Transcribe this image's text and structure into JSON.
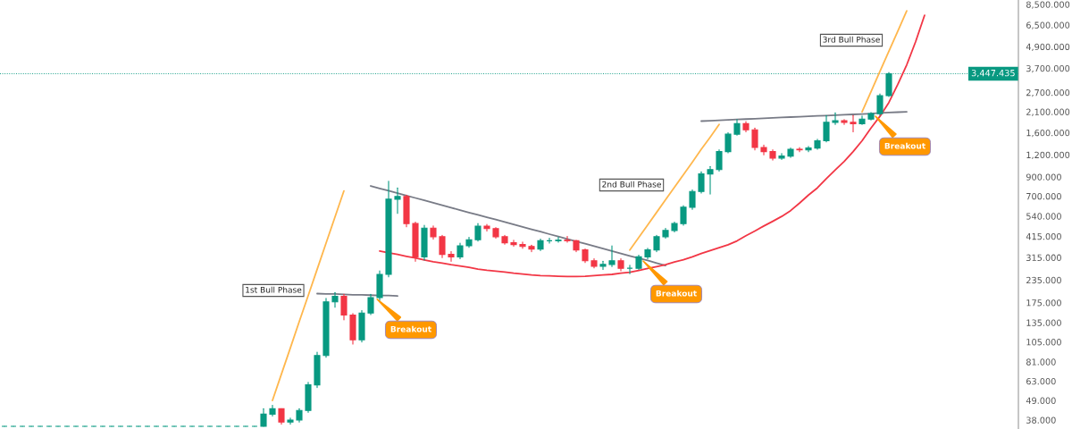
{
  "chart_data": {
    "type": "candlestick",
    "categories": [
      null,
      null,
      null,
      null,
      null,
      null,
      null,
      null,
      null,
      null,
      null,
      null,
      null,
      null,
      null,
      null,
      null,
      null,
      null,
      null,
      null,
      null,
      null,
      null,
      null,
      null,
      null,
      null,
      null,
      null,
      null,
      null,
      null,
      null,
      null,
      null,
      null,
      null,
      null,
      null,
      null,
      null,
      null,
      null,
      null,
      null,
      null,
      null,
      null,
      null,
      null,
      null,
      null,
      null,
      null,
      null,
      null,
      null,
      null,
      null,
      null,
      null,
      null,
      null,
      null,
      null,
      null,
      null,
      null,
      null,
      null,
      null,
      null,
      null,
      null,
      null,
      null,
      null,
      null,
      null,
      null,
      null,
      null,
      null,
      null,
      null,
      null,
      null,
      null,
      null,
      null,
      null,
      null,
      null,
      null,
      null,
      null,
      null,
      null,
      null,
      null,
      null,
      null,
      null
    ],
    "ohlc": [
      [
        35,
        35,
        35,
        35
      ],
      [
        35,
        35,
        35,
        35
      ],
      [
        35,
        35,
        35,
        35
      ],
      [
        35,
        35,
        35,
        35
      ],
      [
        35,
        35,
        35,
        35
      ],
      [
        35,
        35,
        35,
        35
      ],
      [
        35,
        35,
        35,
        35
      ],
      [
        35,
        35,
        35,
        35
      ],
      [
        35,
        35,
        35,
        35
      ],
      [
        35,
        35,
        35,
        35
      ],
      [
        35,
        35,
        35,
        35
      ],
      [
        35,
        35,
        35,
        35
      ],
      [
        35,
        35,
        35,
        35
      ],
      [
        35,
        35,
        35,
        35
      ],
      [
        35,
        35,
        35,
        35
      ],
      [
        35,
        35,
        35,
        35
      ],
      [
        35,
        35,
        35,
        35
      ],
      [
        35,
        35,
        35,
        35
      ],
      [
        35,
        35,
        35,
        35
      ],
      [
        35,
        35,
        35,
        35
      ],
      [
        35,
        35,
        35,
        35
      ],
      [
        35,
        35,
        35,
        35
      ],
      [
        35,
        35,
        35,
        35
      ],
      [
        35,
        35,
        35,
        35
      ],
      [
        35,
        35,
        35,
        35
      ],
      [
        35,
        35,
        35,
        35
      ],
      [
        35,
        35,
        35,
        35
      ],
      [
        35,
        35,
        35,
        35
      ],
      [
        35,
        35,
        35,
        35
      ],
      [
        35,
        44,
        35,
        41
      ],
      [
        41,
        46,
        40,
        44
      ],
      [
        44,
        44,
        36,
        37
      ],
      [
        37,
        39,
        36,
        38
      ],
      [
        38,
        44,
        37,
        43
      ],
      [
        43,
        62,
        42,
        60
      ],
      [
        60,
        92,
        58,
        88
      ],
      [
        88,
        185,
        86,
        177
      ],
      [
        177,
        200,
        165,
        190
      ],
      [
        190,
        195,
        140,
        149
      ],
      [
        149,
        152,
        102,
        108
      ],
      [
        108,
        158,
        105,
        153
      ],
      [
        153,
        195,
        150,
        187
      ],
      [
        187,
        265,
        180,
        253
      ],
      [
        253,
        850,
        245,
        673
      ],
      [
        673,
        780,
        560,
        697
      ],
      [
        697,
        710,
        470,
        490
      ],
      [
        490,
        500,
        300,
        318
      ],
      [
        318,
        480,
        305,
        462
      ],
      [
        462,
        475,
        400,
        413
      ],
      [
        413,
        420,
        315,
        328
      ],
      [
        328,
        340,
        300,
        318
      ],
      [
        318,
        380,
        310,
        367
      ],
      [
        367,
        410,
        360,
        397
      ],
      [
        397,
        490,
        390,
        474
      ],
      [
        474,
        485,
        445,
        459
      ],
      [
        459,
        465,
        405,
        413
      ],
      [
        413,
        420,
        375,
        382
      ],
      [
        382,
        395,
        365,
        373
      ],
      [
        373,
        385,
        355,
        364
      ],
      [
        364,
        370,
        340,
        352
      ],
      [
        352,
        400,
        345,
        392
      ],
      [
        392,
        405,
        380,
        392
      ],
      [
        392,
        410,
        385,
        395
      ],
      [
        395,
        415,
        385,
        392
      ],
      [
        392,
        395,
        340,
        348
      ],
      [
        348,
        352,
        295,
        302
      ],
      [
        302,
        310,
        275,
        281
      ],
      [
        281,
        300,
        270,
        288
      ],
      [
        288,
        367,
        280,
        302
      ],
      [
        302,
        310,
        265,
        274
      ],
      [
        274,
        285,
        255,
        274
      ],
      [
        274,
        325,
        270,
        318
      ],
      [
        318,
        355,
        310,
        348
      ],
      [
        348,
        420,
        340,
        413
      ],
      [
        413,
        460,
        405,
        448
      ],
      [
        448,
        500,
        440,
        490
      ],
      [
        490,
        620,
        480,
        606
      ],
      [
        606,
        760,
        590,
        744
      ],
      [
        744,
        960,
        730,
        935
      ],
      [
        935,
        1030,
        720,
        990
      ],
      [
        990,
        1280,
        970,
        1250
      ],
      [
        1250,
        1600,
        1230,
        1570
      ],
      [
        1570,
        1900,
        1550,
        1800
      ],
      [
        1800,
        1850,
        1620,
        1660
      ],
      [
        1660,
        1700,
        1280,
        1320
      ],
      [
        1320,
        1360,
        1200,
        1250
      ],
      [
        1250,
        1280,
        1120,
        1150
      ],
      [
        1150,
        1220,
        1130,
        1180
      ],
      [
        1180,
        1310,
        1160,
        1290
      ],
      [
        1290,
        1320,
        1250,
        1280
      ],
      [
        1280,
        1340,
        1250,
        1310
      ],
      [
        1310,
        1470,
        1290,
        1440
      ],
      [
        1440,
        2000,
        1420,
        1830
      ],
      [
        1830,
        2070,
        1780,
        1870
      ],
      [
        1870,
        1900,
        1780,
        1830
      ],
      [
        1830,
        2000,
        1620,
        1800
      ],
      [
        1800,
        1990,
        1780,
        1910
      ],
      [
        1910,
        2080,
        1890,
        2050
      ],
      [
        2050,
        2650,
        2010,
        2590
      ],
      [
        2590,
        3500,
        2560,
        3447
      ],
      null,
      null,
      null,
      null
    ],
    "series": [
      {
        "type": "line",
        "color": "#787b86",
        "values": [
          null,
          null,
          null,
          null,
          null,
          null,
          null,
          null,
          null,
          null,
          null,
          null,
          null,
          null,
          null,
          null,
          null,
          null,
          null,
          null,
          null,
          null,
          null,
          null,
          null,
          null,
          null,
          null,
          null,
          null,
          null,
          null,
          null,
          null,
          null,
          197,
          196,
          196,
          195,
          194,
          194,
          193,
          192,
          192,
          191,
          null,
          null,
          null,
          null,
          null,
          null,
          null,
          null,
          null,
          null,
          null,
          null,
          null,
          null,
          null,
          null,
          null,
          null,
          null,
          null,
          null,
          null,
          null,
          null,
          null,
          null,
          null,
          null,
          null,
          null,
          null,
          null,
          null,
          null,
          null,
          null,
          null,
          null,
          null,
          null,
          null,
          null,
          null,
          null,
          null,
          null,
          null,
          null,
          null,
          null,
          null,
          null,
          null,
          null,
          null,
          null,
          null,
          null,
          null
        ]
      },
      {
        "type": "line",
        "color": "#787b86",
        "values": [
          null,
          null,
          null,
          null,
          null,
          null,
          null,
          null,
          null,
          null,
          null,
          null,
          null,
          null,
          null,
          null,
          null,
          null,
          null,
          null,
          null,
          null,
          null,
          null,
          null,
          null,
          null,
          null,
          null,
          null,
          null,
          null,
          null,
          null,
          null,
          null,
          null,
          null,
          null,
          null,
          null,
          800,
          775,
          751,
          728,
          706,
          684,
          663,
          642,
          622,
          603,
          584,
          566,
          549,
          532,
          516,
          500,
          484,
          469,
          455,
          441,
          427,
          414,
          401,
          389,
          377,
          365,
          354,
          343,
          332,
          322,
          312,
          303,
          293,
          284,
          null,
          null,
          null,
          null,
          null,
          null,
          null,
          null,
          null,
          null,
          null,
          null,
          null,
          null,
          null,
          null,
          null,
          null,
          null,
          null,
          null,
          null,
          null,
          null,
          null,
          null,
          null,
          null,
          null
        ]
      },
      {
        "type": "line",
        "color": "#787b86",
        "values": [
          null,
          null,
          null,
          null,
          null,
          null,
          null,
          null,
          null,
          null,
          null,
          null,
          null,
          null,
          null,
          null,
          null,
          null,
          null,
          null,
          null,
          null,
          null,
          null,
          null,
          null,
          null,
          null,
          null,
          null,
          null,
          null,
          null,
          null,
          null,
          null,
          null,
          null,
          null,
          null,
          null,
          null,
          null,
          null,
          null,
          null,
          null,
          null,
          null,
          null,
          null,
          null,
          null,
          null,
          null,
          null,
          null,
          null,
          null,
          null,
          null,
          null,
          null,
          null,
          null,
          null,
          null,
          null,
          null,
          null,
          null,
          null,
          null,
          null,
          null,
          null,
          null,
          null,
          1860,
          1870,
          1880,
          1890,
          1900,
          1910,
          1920,
          1930,
          1940,
          1950,
          1960,
          1970,
          1980,
          1990,
          2000,
          2010,
          2020,
          2030,
          2040,
          2050,
          2070,
          2080,
          2090,
          2100,
          null,
          null
        ]
      },
      {
        "type": "line",
        "color": "#ffb74d",
        "values": [
          null,
          null,
          null,
          null,
          null,
          null,
          null,
          null,
          null,
          null,
          null,
          null,
          null,
          null,
          null,
          null,
          null,
          null,
          null,
          null,
          null,
          null,
          null,
          null,
          null,
          null,
          null,
          null,
          null,
          null,
          49,
          69,
          97,
          137,
          192,
          270,
          380,
          534,
          750,
          null,
          null,
          null,
          null,
          null,
          null,
          null,
          null,
          null,
          null,
          null,
          null,
          null,
          null,
          null,
          null,
          null,
          null,
          null,
          null,
          null,
          null,
          null,
          null,
          null,
          null,
          null,
          null,
          null,
          null,
          null,
          null,
          null,
          null,
          null,
          null,
          null,
          null,
          null,
          null,
          null,
          null,
          null,
          null,
          null,
          null,
          null,
          null,
          null,
          null,
          null,
          null,
          null,
          null,
          null,
          null,
          null,
          null,
          null,
          null,
          null,
          null,
          null,
          null,
          null
        ]
      },
      {
        "type": "line",
        "color": "#ffb74d",
        "values": [
          null,
          null,
          null,
          null,
          null,
          null,
          null,
          null,
          null,
          null,
          null,
          null,
          null,
          null,
          null,
          null,
          null,
          null,
          null,
          null,
          null,
          null,
          null,
          null,
          null,
          null,
          null,
          null,
          null,
          null,
          null,
          null,
          null,
          null,
          null,
          null,
          null,
          null,
          null,
          null,
          null,
          null,
          null,
          null,
          null,
          null,
          null,
          null,
          null,
          null,
          null,
          null,
          null,
          null,
          null,
          null,
          null,
          null,
          null,
          null,
          null,
          null,
          null,
          null,
          null,
          null,
          null,
          null,
          null,
          null,
          347,
          409,
          481,
          567,
          668,
          786,
          926,
          1090,
          1290,
          1510,
          1780,
          null,
          null,
          null,
          null,
          null,
          null,
          null,
          null,
          null,
          null,
          null,
          null,
          null,
          null,
          null,
          null,
          null,
          null,
          null,
          null,
          null,
          null,
          null
        ]
      },
      {
        "type": "line",
        "color": "#ffb74d",
        "values": [
          null,
          null,
          null,
          null,
          null,
          null,
          null,
          null,
          null,
          null,
          null,
          null,
          null,
          null,
          null,
          null,
          null,
          null,
          null,
          null,
          null,
          null,
          null,
          null,
          null,
          null,
          null,
          null,
          null,
          null,
          null,
          null,
          null,
          null,
          null,
          null,
          null,
          null,
          null,
          null,
          null,
          null,
          null,
          null,
          null,
          null,
          null,
          null,
          null,
          null,
          null,
          null,
          null,
          null,
          null,
          null,
          null,
          null,
          null,
          null,
          null,
          null,
          null,
          null,
          null,
          null,
          null,
          null,
          null,
          null,
          null,
          null,
          null,
          null,
          null,
          null,
          null,
          null,
          null,
          null,
          null,
          null,
          null,
          null,
          null,
          null,
          null,
          null,
          null,
          null,
          null,
          null,
          null,
          null,
          null,
          null,
          2100,
          2730,
          3550,
          4620,
          6000,
          7810,
          null,
          null
        ]
      },
      {
        "type": "line",
        "color": "#f23645",
        "values": [
          null,
          null,
          null,
          null,
          null,
          null,
          null,
          null,
          null,
          null,
          null,
          null,
          null,
          null,
          null,
          null,
          null,
          null,
          null,
          null,
          null,
          null,
          null,
          null,
          null,
          null,
          null,
          null,
          null,
          null,
          null,
          null,
          null,
          null,
          null,
          null,
          null,
          null,
          null,
          null,
          null,
          null,
          343,
          335,
          328,
          320,
          313,
          305,
          298,
          293,
          287,
          282,
          277,
          271,
          267,
          264,
          261,
          257,
          254,
          251,
          249,
          248,
          247,
          246,
          246,
          247,
          249,
          251,
          253,
          257,
          260,
          266,
          273,
          280,
          287,
          297,
          306,
          318,
          332,
          345,
          358,
          372,
          391,
          418,
          445,
          475,
          505,
          538,
          580,
          640,
          710,
          780,
          880,
          985,
          1100,
          1250,
          1440,
          1700,
          1980,
          2370,
          3000,
          3870,
          5240,
          7380
        ]
      }
    ],
    "ylim": [
      33.8,
      9000
    ],
    "yticks": [
      {
        "value": 38,
        "label": "38.000"
      },
      {
        "value": 49,
        "label": "49.000"
      },
      {
        "value": 63,
        "label": "63.000"
      },
      {
        "value": 81,
        "label": "81.000"
      },
      {
        "value": 105,
        "label": "105.000"
      },
      {
        "value": 135,
        "label": "135.000"
      },
      {
        "value": 175,
        "label": "175.000"
      },
      {
        "value": 235,
        "label": "235.000"
      },
      {
        "value": 315,
        "label": "315.000"
      },
      {
        "value": 415,
        "label": "415.000"
      },
      {
        "value": 540,
        "label": "540.000"
      },
      {
        "value": 700,
        "label": "700.000"
      },
      {
        "value": 900,
        "label": "900.000"
      },
      {
        "value": 1200,
        "label": "1,200.000"
      },
      {
        "value": 1600,
        "label": "1,600.000"
      },
      {
        "value": 2100,
        "label": "2,100.000"
      },
      {
        "value": 2700,
        "label": "2,700.000"
      },
      {
        "value": 3700,
        "label": "3,700.000"
      },
      {
        "value": 4900,
        "label": "4,900.000"
      },
      {
        "value": 6500,
        "label": "6,500.000"
      },
      {
        "value": 8500,
        "label": "8,500.000"
      }
    ],
    "log": "y",
    "grid": false,
    "tick_labels": "y",
    "ref_lines": [
      {
        "axis": "y",
        "value": 3447.435,
        "label": "3,447.435",
        "color": "#089981",
        "line_style": "dotted"
      }
    ],
    "annotations": [
      "1st Bull Phase",
      "Breakout",
      "2nd Bull Phase",
      "Breakout",
      "3rd Bull Phase",
      "Breakout"
    ]
  }
}
